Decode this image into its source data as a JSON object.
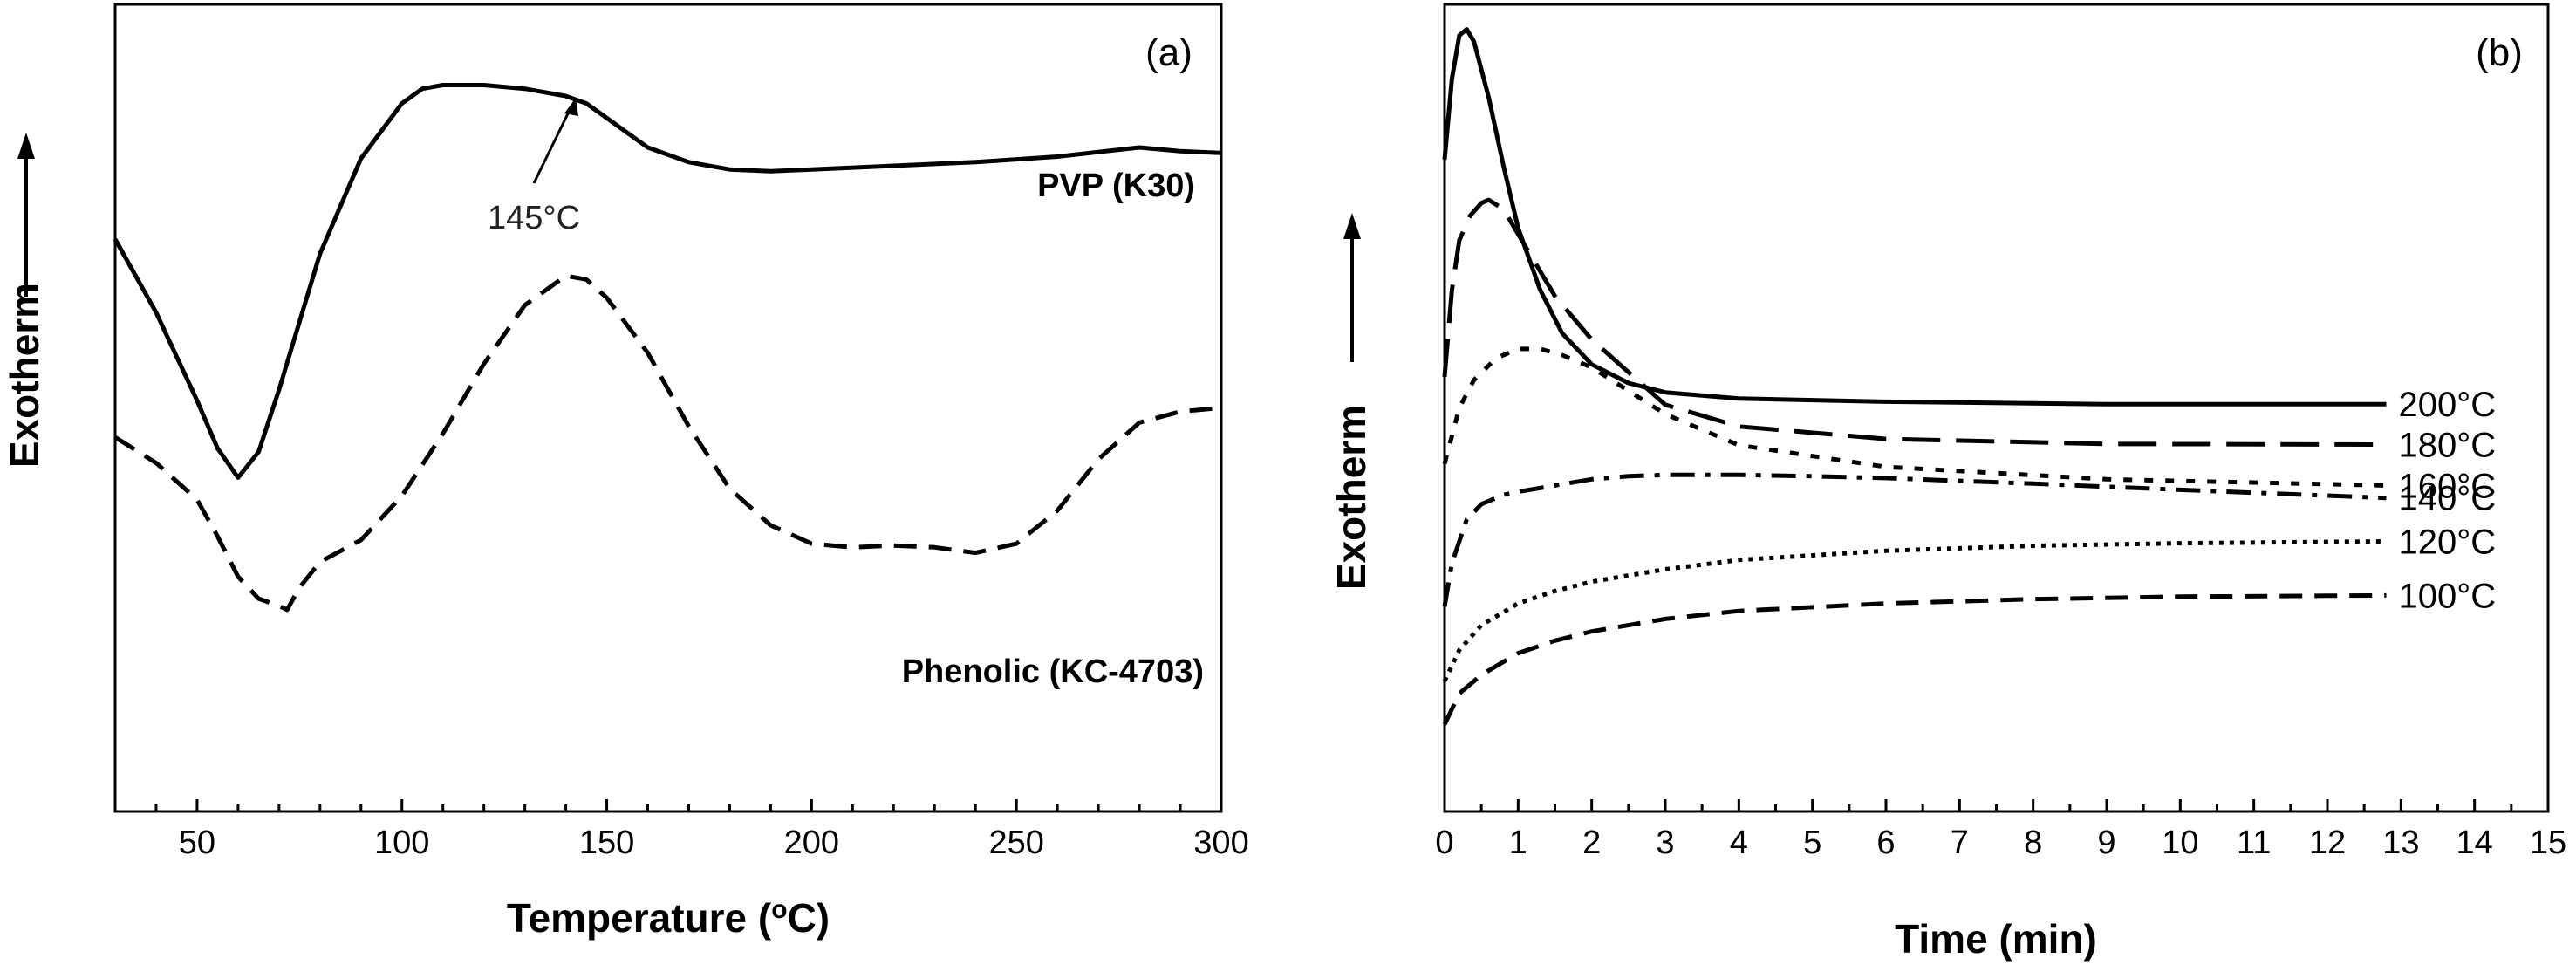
{
  "chart_data": [
    {
      "type": "line",
      "panel_label": "(a)",
      "xlabel": "Temperature (°C)",
      "ylabel": "Exotherm",
      "xlim": [
        30,
        300
      ],
      "xticks": [
        50,
        100,
        150,
        200,
        250,
        300
      ],
      "y_axis_tick_labels": false,
      "series": [
        {
          "name": "PVP (K30)",
          "style": "solid",
          "x": [
            30,
            40,
            50,
            55,
            60,
            65,
            70,
            80,
            90,
            100,
            105,
            110,
            120,
            130,
            140,
            145,
            150,
            160,
            170,
            180,
            190,
            200,
            220,
            240,
            260,
            280,
            290,
            300
          ],
          "y": [
            7.6,
            5.6,
            3.2,
            1.9,
            1.1,
            1.8,
            3.5,
            7.2,
            9.8,
            11.3,
            11.7,
            11.8,
            11.8,
            11.7,
            11.5,
            11.3,
            10.9,
            10.1,
            9.7,
            9.5,
            9.45,
            9.5,
            9.6,
            9.7,
            9.85,
            10.1,
            10.0,
            9.95
          ]
        },
        {
          "name": "Phenolic (KC-4703)",
          "style": "dashed",
          "x": [
            30,
            40,
            50,
            55,
            60,
            65,
            70,
            72,
            75,
            80,
            90,
            100,
            110,
            120,
            130,
            140,
            145,
            150,
            160,
            170,
            180,
            190,
            200,
            210,
            220,
            230,
            240,
            250,
            260,
            270,
            280,
            290,
            300
          ],
          "y": [
            2.2,
            1.5,
            0.5,
            -0.5,
            -1.6,
            -2.2,
            -2.4,
            -2.5,
            -1.9,
            -1.2,
            -0.6,
            0.6,
            2.3,
            4.2,
            5.8,
            6.6,
            6.5,
            6.0,
            4.5,
            2.5,
            0.8,
            -0.2,
            -0.7,
            -0.8,
            -0.75,
            -0.8,
            -0.95,
            -0.7,
            0.2,
            1.6,
            2.6,
            2.9,
            3.0
          ]
        }
      ],
      "annotations": [
        {
          "text": "145°C",
          "x": 145
        }
      ]
    },
    {
      "type": "line",
      "panel_label": "(b)",
      "xlabel": "Time (min)",
      "ylabel": "Exotherm",
      "xlim": [
        0,
        15
      ],
      "xticks": [
        0,
        1,
        2,
        3,
        4,
        5,
        6,
        7,
        8,
        9,
        10,
        11,
        12,
        13,
        14,
        15
      ],
      "y_axis_tick_labels": false,
      "series": [
        {
          "name": "200°C",
          "style": "solid",
          "x": [
            0,
            0.1,
            0.2,
            0.3,
            0.4,
            0.6,
            0.8,
            1.0,
            1.3,
            1.6,
            2.0,
            2.5,
            3.0,
            4.0,
            6.0,
            9.0,
            12.8
          ],
          "y": [
            85,
            98,
            105,
            106,
            104,
            95,
            84,
            74,
            64,
            57,
            52,
            49,
            47.5,
            46.5,
            46,
            45.6,
            45.6
          ]
        },
        {
          "name": "180°C",
          "style": "long-dash",
          "x": [
            0,
            0.1,
            0.2,
            0.35,
            0.5,
            0.6,
            0.8,
            1.0,
            1.5,
            2.0,
            3.0,
            4.0,
            6.0,
            9.0,
            12.8
          ],
          "y": [
            50,
            64,
            72,
            76,
            78,
            78.5,
            77,
            73,
            63,
            56,
            45.5,
            42,
            40,
            39.2,
            39.1
          ]
        },
        {
          "name": "160°C",
          "style": "short-dash",
          "x": [
            0,
            0.2,
            0.4,
            0.7,
            1.0,
            1.3,
            1.6,
            2.0,
            3.0,
            4.0,
            6.0,
            9.0,
            12.8
          ],
          "y": [
            36,
            45,
            49.5,
            53,
            54.5,
            54.5,
            53.5,
            51.5,
            44,
            39,
            35.5,
            33.5,
            32.5
          ]
        },
        {
          "name": "140°C",
          "style": "dash-dot",
          "x": [
            0,
            0.1,
            0.3,
            0.5,
            0.8,
            1.0,
            1.5,
            2.0,
            2.5,
            3.0,
            4.0,
            5.0,
            6.0,
            8.0,
            10.0,
            12.8
          ],
          "y": [
            13,
            20,
            27,
            29.5,
            31,
            31.5,
            32.5,
            33.5,
            34,
            34.2,
            34.2,
            34,
            33.7,
            32.8,
            31.8,
            30.5
          ]
        },
        {
          "name": "120°C",
          "style": "dotted",
          "x": [
            0,
            0.2,
            0.5,
            1.0,
            1.5,
            2.0,
            3.0,
            4.0,
            6.0,
            8.0,
            10.0,
            12.8
          ],
          "y": [
            1,
            6,
            10,
            13.5,
            15.5,
            17,
            19,
            20.5,
            22,
            22.8,
            23.2,
            23.5
          ]
        },
        {
          "name": "100°C",
          "style": "dashed",
          "x": [
            0,
            0.2,
            0.5,
            1.0,
            1.5,
            2.0,
            3.0,
            4.0,
            6.0,
            8.0,
            10.0,
            12.8
          ],
          "y": [
            -6,
            -1,
            2,
            5.5,
            7.5,
            9,
            11,
            12.3,
            13.5,
            14.2,
            14.6,
            14.8
          ]
        }
      ]
    }
  ]
}
